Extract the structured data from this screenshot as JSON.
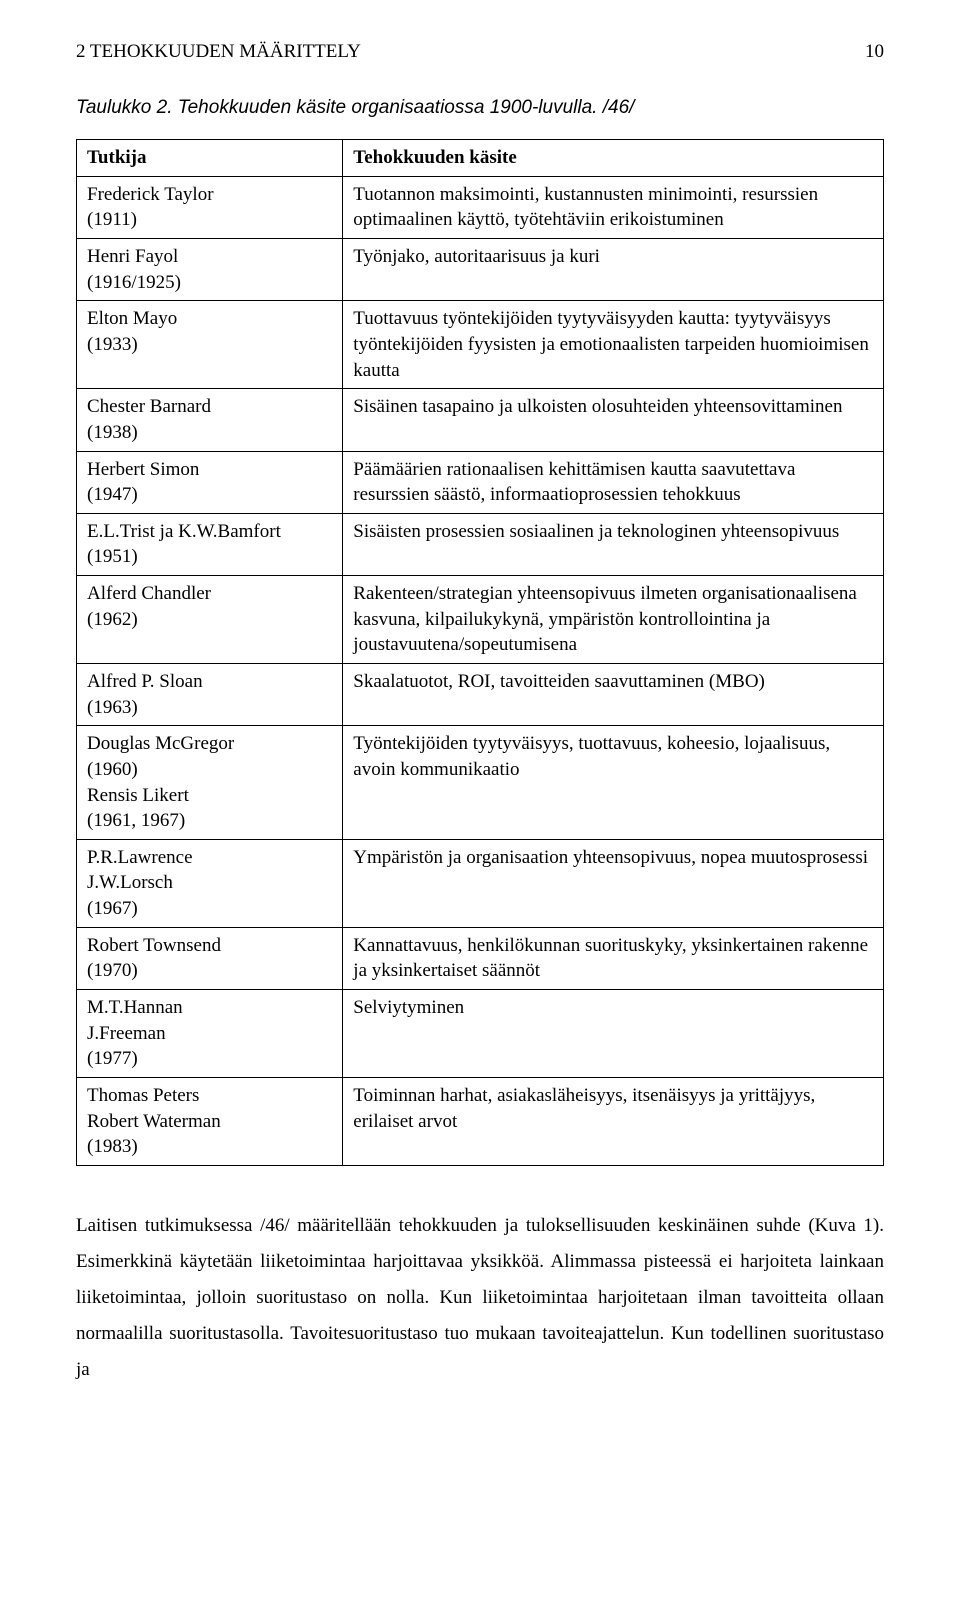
{
  "header": {
    "section": "2 TEHOKKUUDEN MÄÄRITTELY",
    "page_number": "10"
  },
  "caption": "Taulukko 2. Tehokkuuden käsite organisaatiossa 1900-luvulla. /46/",
  "table": {
    "headers": [
      "Tutkija",
      "Tehokkuuden käsite"
    ],
    "rows": [
      [
        "Frederick Taylor\n(1911)",
        "Tuotannon maksimointi, kustannusten minimointi, resurssien optimaalinen käyttö, työtehtäviin erikoistuminen"
      ],
      [
        "Henri Fayol\n(1916/1925)",
        "Työnjako, autoritaarisuus ja kuri"
      ],
      [
        "Elton Mayo\n(1933)",
        "Tuottavuus työntekijöiden tyytyväisyyden kautta: tyytyväisyys työntekijöiden fyysisten ja emotionaalisten tarpeiden huomioimisen kautta"
      ],
      [
        "Chester Barnard\n(1938)",
        "Sisäinen tasapaino ja ulkoisten olosuhteiden yhteensovittaminen"
      ],
      [
        "Herbert Simon\n(1947)",
        "Päämäärien rationaalisen kehittämisen kautta saavutettava resurssien säästö, informaatioprosessien tehokkuus"
      ],
      [
        "E.L.Trist ja K.W.Bamfort\n(1951)",
        "Sisäisten prosessien sosiaalinen ja teknologinen yhteensopivuus"
      ],
      [
        "Alferd Chandler\n(1962)",
        "Rakenteen/strategian yhteensopivuus ilmeten organisationaalisena kasvuna, kilpailukykynä, ympäristön kontrollointina ja joustavuutena/sopeutumisena"
      ],
      [
        "Alfred P. Sloan\n(1963)",
        "Skaalatuotot, ROI, tavoitteiden saavuttaminen (MBO)"
      ],
      [
        "Douglas McGregor\n(1960)\nRensis Likert\n(1961, 1967)",
        "Työntekijöiden tyytyväisyys, tuottavuus, koheesio, lojaalisuus, avoin kommunikaatio"
      ],
      [
        "P.R.Lawrence\nJ.W.Lorsch\n(1967)",
        "Ympäristön ja organisaation yhteensopivuus, nopea muutosprosessi"
      ],
      [
        "Robert Townsend\n(1970)",
        "Kannattavuus, henkilökunnan suorituskyky, yksinkertainen rakenne ja yksinkertaiset säännöt"
      ],
      [
        "M.T.Hannan\nJ.Freeman\n(1977)",
        "Selviytyminen"
      ],
      [
        "Thomas Peters\nRobert Waterman\n(1983)",
        "Toiminnan harhat, asiakasläheisyys, itsenäisyys ja yrittäjyys, erilaiset arvot"
      ]
    ]
  },
  "paragraph": "Laitisen tutkimuksessa /46/ määritellään tehokkuuden ja tuloksellisuuden keskinäinen suhde (Kuva 1). Esimerkkinä käytetään liiketoimintaa harjoittavaa yksikköä. Alimmassa pisteessä ei harjoiteta lainkaan liiketoimintaa, jolloin suoritustaso on nolla. Kun liiketoimintaa harjoitetaan ilman tavoitteita ollaan normaalilla suoritustasolla. Tavoitesuoritustaso tuo mukaan tavoiteajattelun. Kun todellinen suoritustaso ja"
}
